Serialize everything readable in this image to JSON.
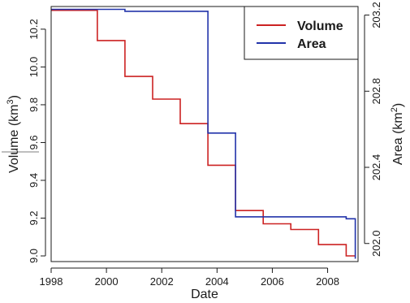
{
  "chart_data": {
    "type": "line",
    "subtype": "step",
    "xlabel": "Date",
    "ylabel_left": "Volume (km³)",
    "ylabel_left_base": "Volume (km",
    "ylabel_left_sup": "3",
    "ylabel_left_close": ")",
    "ylabel_right": "Area (km²)",
    "ylabel_right_base": "Area (km",
    "ylabel_right_sup": "2",
    "ylabel_right_close": ")",
    "xlim": [
      1998,
      2009.1
    ],
    "ylim_left": [
      8.97,
      10.32
    ],
    "ylim_right": [
      201.905,
      203.245
    ],
    "x_ticks": [
      1998,
      2000,
      2002,
      2004,
      2006,
      2008
    ],
    "x_tick_labels": [
      "1998",
      "2000",
      "2002",
      "2004",
      "2006",
      "2008"
    ],
    "y_left_ticks": [
      9.0,
      9.2,
      9.4,
      9.6,
      9.8,
      10.0,
      10.2
    ],
    "y_left_tick_labels": [
      "9.0",
      "9.2",
      "9.4",
      "9.6",
      "9.8",
      "10.0",
      "10.2"
    ],
    "y_right_ticks": [
      202.0,
      202.4,
      202.8,
      203.2
    ],
    "y_right_tick_labels": [
      "202.0",
      "202.4",
      "202.8",
      "203.2"
    ],
    "legend_position": "top-right",
    "series": [
      {
        "name": "Volume",
        "axis": "left",
        "color": "#cc2222",
        "x": [
          1998.0,
          1999.67,
          2000.67,
          2001.67,
          2002.67,
          2003.67,
          2004.67,
          2005.67,
          2006.67,
          2007.67,
          2008.67,
          2009.0
        ],
        "y": [
          10.3,
          10.14,
          9.95,
          9.83,
          9.7,
          9.48,
          9.24,
          9.17,
          9.14,
          9.06,
          9.0,
          9.0
        ]
      },
      {
        "name": "Area",
        "axis": "right",
        "color": "#2233aa",
        "x": [
          1998.0,
          2000.67,
          2003.67,
          2004.67,
          2008.67,
          2009.0
        ],
        "y": [
          203.23,
          203.22,
          202.58,
          202.14,
          202.13,
          201.92
        ]
      }
    ]
  }
}
